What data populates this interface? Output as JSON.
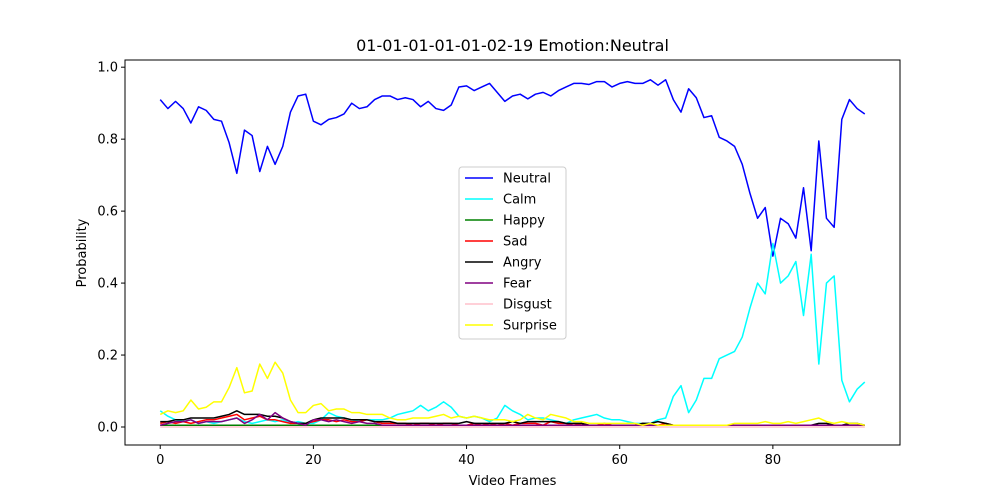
{
  "chart_data": {
    "type": "line",
    "title": "01-01-01-01-01-02-19 Emotion:Neutral",
    "xlabel": "Video Frames",
    "ylabel": "Probability",
    "xlim": [
      -4.6,
      96.6
    ],
    "ylim": [
      -0.05,
      1.02
    ],
    "xticks": [
      0,
      20,
      40,
      60,
      80
    ],
    "yticks": [
      0.0,
      0.2,
      0.4,
      0.6,
      0.8,
      1.0
    ],
    "ytick_labels": [
      "0.0",
      "0.2",
      "0.4",
      "0.6",
      "0.8",
      "1.0"
    ],
    "legend_position": "center",
    "grid": false,
    "series": [
      {
        "name": "Neutral",
        "color": "#0000ff",
        "values": [
          0.91,
          0.885,
          0.905,
          0.885,
          0.845,
          0.89,
          0.88,
          0.855,
          0.85,
          0.79,
          0.705,
          0.825,
          0.81,
          0.71,
          0.78,
          0.73,
          0.78,
          0.875,
          0.92,
          0.925,
          0.85,
          0.84,
          0.855,
          0.86,
          0.87,
          0.9,
          0.885,
          0.89,
          0.91,
          0.92,
          0.92,
          0.91,
          0.915,
          0.91,
          0.89,
          0.905,
          0.885,
          0.88,
          0.895,
          0.945,
          0.948,
          0.935,
          0.945,
          0.955,
          0.93,
          0.905,
          0.92,
          0.925,
          0.912,
          0.925,
          0.93,
          0.92,
          0.935,
          0.945,
          0.955,
          0.955,
          0.952,
          0.96,
          0.96,
          0.945,
          0.955,
          0.96,
          0.955,
          0.955,
          0.965,
          0.95,
          0.965,
          0.91,
          0.875,
          0.94,
          0.915,
          0.86,
          0.865,
          0.805,
          0.795,
          0.78,
          0.73,
          0.65,
          0.58,
          0.61,
          0.475,
          0.58,
          0.565,
          0.525,
          0.665,
          0.49,
          0.795,
          0.58,
          0.555,
          0.855,
          0.91,
          0.885,
          0.87
        ]
      },
      {
        "name": "Calm",
        "color": "#00ffff",
        "values": [
          0.045,
          0.03,
          0.02,
          0.015,
          0.02,
          0.01,
          0.015,
          0.01,
          0.015,
          0.02,
          0.025,
          0.015,
          0.01,
          0.015,
          0.02,
          0.015,
          0.02,
          0.01,
          0.015,
          0.01,
          0.01,
          0.02,
          0.04,
          0.03,
          0.025,
          0.02,
          0.015,
          0.02,
          0.02,
          0.02,
          0.025,
          0.035,
          0.04,
          0.045,
          0.06,
          0.045,
          0.055,
          0.07,
          0.055,
          0.03,
          0.025,
          0.03,
          0.025,
          0.015,
          0.025,
          0.06,
          0.045,
          0.035,
          0.02,
          0.025,
          0.025,
          0.02,
          0.015,
          0.01,
          0.02,
          0.025,
          0.03,
          0.035,
          0.025,
          0.02,
          0.02,
          0.015,
          0.01,
          0.01,
          0.01,
          0.02,
          0.025,
          0.085,
          0.115,
          0.04,
          0.075,
          0.135,
          0.135,
          0.19,
          0.2,
          0.21,
          0.25,
          0.33,
          0.4,
          0.37,
          0.51,
          0.4,
          0.42,
          0.46,
          0.31,
          0.48,
          0.175,
          0.4,
          0.42,
          0.13,
          0.07,
          0.105,
          0.125
        ]
      },
      {
        "name": "Happy",
        "color": "#008000",
        "values": [
          0.005,
          0.005,
          0.005,
          0.005,
          0.005,
          0.005,
          0.005,
          0.005,
          0.005,
          0.005,
          0.005,
          0.005,
          0.005,
          0.005,
          0.005,
          0.005,
          0.005,
          0.005,
          0.005,
          0.005,
          0.005,
          0.005,
          0.005,
          0.005,
          0.005,
          0.005,
          0.005,
          0.005,
          0.005,
          0.005,
          0.005,
          0.005,
          0.005,
          0.005,
          0.005,
          0.005,
          0.005,
          0.005,
          0.005,
          0.005,
          0.005,
          0.005,
          0.005,
          0.005,
          0.005,
          0.005,
          0.005,
          0.005,
          0.005,
          0.005,
          0.005,
          0.005,
          0.005,
          0.005,
          0.005,
          0.005,
          0.005,
          0.005,
          0.005,
          0.005,
          0.005,
          0.005,
          0.005,
          0.005,
          0.005,
          0.005,
          0.005,
          0.005,
          0.005,
          0.005,
          0.005,
          0.005,
          0.005,
          0.005,
          0.005,
          0.005,
          0.005,
          0.005,
          0.005,
          0.005,
          0.005,
          0.005,
          0.005,
          0.005,
          0.005,
          0.005,
          0.005,
          0.005,
          0.005,
          0.005,
          0.005,
          0.005,
          0.005
        ]
      },
      {
        "name": "Sad",
        "color": "#ff0000",
        "values": [
          0.01,
          0.015,
          0.01,
          0.015,
          0.01,
          0.015,
          0.02,
          0.02,
          0.025,
          0.03,
          0.035,
          0.02,
          0.025,
          0.03,
          0.02,
          0.02,
          0.015,
          0.01,
          0.01,
          0.01,
          0.015,
          0.02,
          0.02,
          0.015,
          0.02,
          0.015,
          0.015,
          0.02,
          0.015,
          0.01,
          0.01,
          0.01,
          0.01,
          0.005,
          0.01,
          0.01,
          0.005,
          0.01,
          0.01,
          0.005,
          0.005,
          0.01,
          0.005,
          0.01,
          0.005,
          0.01,
          0.005,
          0.01,
          0.01,
          0.01,
          0.005,
          0.015,
          0.01,
          0.01,
          0.005,
          0.01,
          0.005,
          0.005,
          0.01,
          0.005,
          0.005,
          0.005,
          0.005,
          0.01,
          0.005,
          0.005,
          0.01,
          0.005,
          0.005,
          0.005,
          0.005,
          0.005,
          0.005,
          0.005,
          0.005,
          0.005,
          0.005,
          0.005,
          0.005,
          0.005,
          0.005,
          0.005,
          0.005,
          0.005,
          0.005,
          0.005,
          0.005,
          0.005,
          0.005,
          0.005,
          0.005,
          0.005,
          0.005
        ]
      },
      {
        "name": "Angry",
        "color": "#000000",
        "values": [
          0.015,
          0.015,
          0.02,
          0.02,
          0.025,
          0.025,
          0.025,
          0.025,
          0.03,
          0.035,
          0.045,
          0.035,
          0.035,
          0.035,
          0.03,
          0.03,
          0.025,
          0.015,
          0.01,
          0.01,
          0.02,
          0.025,
          0.025,
          0.025,
          0.025,
          0.02,
          0.02,
          0.02,
          0.015,
          0.015,
          0.015,
          0.01,
          0.01,
          0.01,
          0.01,
          0.01,
          0.01,
          0.01,
          0.01,
          0.01,
          0.015,
          0.01,
          0.01,
          0.01,
          0.01,
          0.01,
          0.015,
          0.01,
          0.015,
          0.015,
          0.015,
          0.015,
          0.015,
          0.01,
          0.01,
          0.01,
          0.005,
          0.005,
          0.005,
          0.005,
          0.005,
          0.005,
          0.005,
          0.01,
          0.01,
          0.015,
          0.01,
          0.005,
          0.005,
          0.005,
          0.005,
          0.005,
          0.005,
          0.005,
          0.005,
          0.005,
          0.005,
          0.005,
          0.005,
          0.005,
          0.005,
          0.005,
          0.005,
          0.005,
          0.005,
          0.005,
          0.01,
          0.01,
          0.005,
          0.005,
          0.01,
          0.01,
          0.005
        ]
      },
      {
        "name": "Fear",
        "color": "#800080",
        "values": [
          0.005,
          0.01,
          0.015,
          0.015,
          0.02,
          0.01,
          0.015,
          0.015,
          0.015,
          0.02,
          0.025,
          0.01,
          0.02,
          0.035,
          0.02,
          0.04,
          0.025,
          0.015,
          0.01,
          0.005,
          0.02,
          0.02,
          0.015,
          0.02,
          0.015,
          0.01,
          0.015,
          0.01,
          0.01,
          0.005,
          0.005,
          0.005,
          0.005,
          0.005,
          0.005,
          0.005,
          0.005,
          0.005,
          0.005,
          0.005,
          0.005,
          0.005,
          0.005,
          0.005,
          0.005,
          0.005,
          0.005,
          0.005,
          0.005,
          0.005,
          0.005,
          0.005,
          0.005,
          0.005,
          0.005,
          0.005,
          0.005,
          0.005,
          0.005,
          0.005,
          0.005,
          0.005,
          0.005,
          0.005,
          0.005,
          0.005,
          0.005,
          0.005,
          0.005,
          0.005,
          0.005,
          0.005,
          0.005,
          0.005,
          0.005,
          0.005,
          0.005,
          0.005,
          0.005,
          0.005,
          0.005,
          0.005,
          0.005,
          0.005,
          0.005,
          0.005,
          0.005,
          0.005,
          0.005,
          0.005,
          0.005,
          0.005,
          0.005
        ]
      },
      {
        "name": "Disgust",
        "color": "#ffc0cb",
        "values": [
          0.0,
          0.0,
          0.0,
          0.0,
          0.0,
          0.0,
          0.0,
          0.0,
          0.0,
          0.0,
          0.0,
          0.0,
          0.0,
          0.0,
          0.0,
          0.0,
          0.0,
          0.0,
          0.0,
          0.0,
          0.0,
          0.0,
          0.0,
          0.0,
          0.0,
          0.0,
          0.0,
          0.0,
          0.0,
          0.0,
          0.0,
          0.0,
          0.0,
          0.0,
          0.0,
          0.0,
          0.0,
          0.0,
          0.0,
          0.0,
          0.0,
          0.0,
          0.0,
          0.0,
          0.0,
          0.0,
          0.0,
          0.0,
          0.0,
          0.0,
          0.0,
          0.0,
          0.0,
          0.0,
          0.0,
          0.0,
          0.0,
          0.0,
          0.0,
          0.0,
          0.0,
          0.0,
          0.0,
          0.0,
          0.0,
          0.0,
          0.0,
          0.0,
          0.0,
          0.0,
          0.0,
          0.0,
          0.0,
          0.0,
          0.0,
          0.0,
          0.0,
          0.0,
          0.0,
          0.0,
          0.0,
          0.0,
          0.0,
          0.0,
          0.0,
          0.0,
          0.0,
          0.0,
          0.0,
          0.0,
          0.0,
          0.0,
          0.0
        ]
      },
      {
        "name": "Surprise",
        "color": "#ffff00",
        "values": [
          0.035,
          0.045,
          0.04,
          0.045,
          0.075,
          0.05,
          0.055,
          0.07,
          0.07,
          0.11,
          0.165,
          0.095,
          0.1,
          0.175,
          0.135,
          0.18,
          0.15,
          0.075,
          0.04,
          0.04,
          0.06,
          0.065,
          0.045,
          0.05,
          0.05,
          0.04,
          0.04,
          0.035,
          0.035,
          0.035,
          0.025,
          0.02,
          0.02,
          0.025,
          0.025,
          0.025,
          0.03,
          0.035,
          0.025,
          0.03,
          0.025,
          0.03,
          0.025,
          0.02,
          0.02,
          0.02,
          0.015,
          0.02,
          0.035,
          0.025,
          0.02,
          0.035,
          0.03,
          0.025,
          0.015,
          0.015,
          0.01,
          0.01,
          0.01,
          0.01,
          0.01,
          0.01,
          0.01,
          0.005,
          0.01,
          0.005,
          0.005,
          0.005,
          0.005,
          0.005,
          0.005,
          0.005,
          0.005,
          0.005,
          0.005,
          0.01,
          0.01,
          0.01,
          0.01,
          0.015,
          0.01,
          0.01,
          0.015,
          0.01,
          0.015,
          0.02,
          0.025,
          0.015,
          0.01,
          0.015,
          0.01,
          0.01,
          0.005
        ]
      }
    ]
  }
}
